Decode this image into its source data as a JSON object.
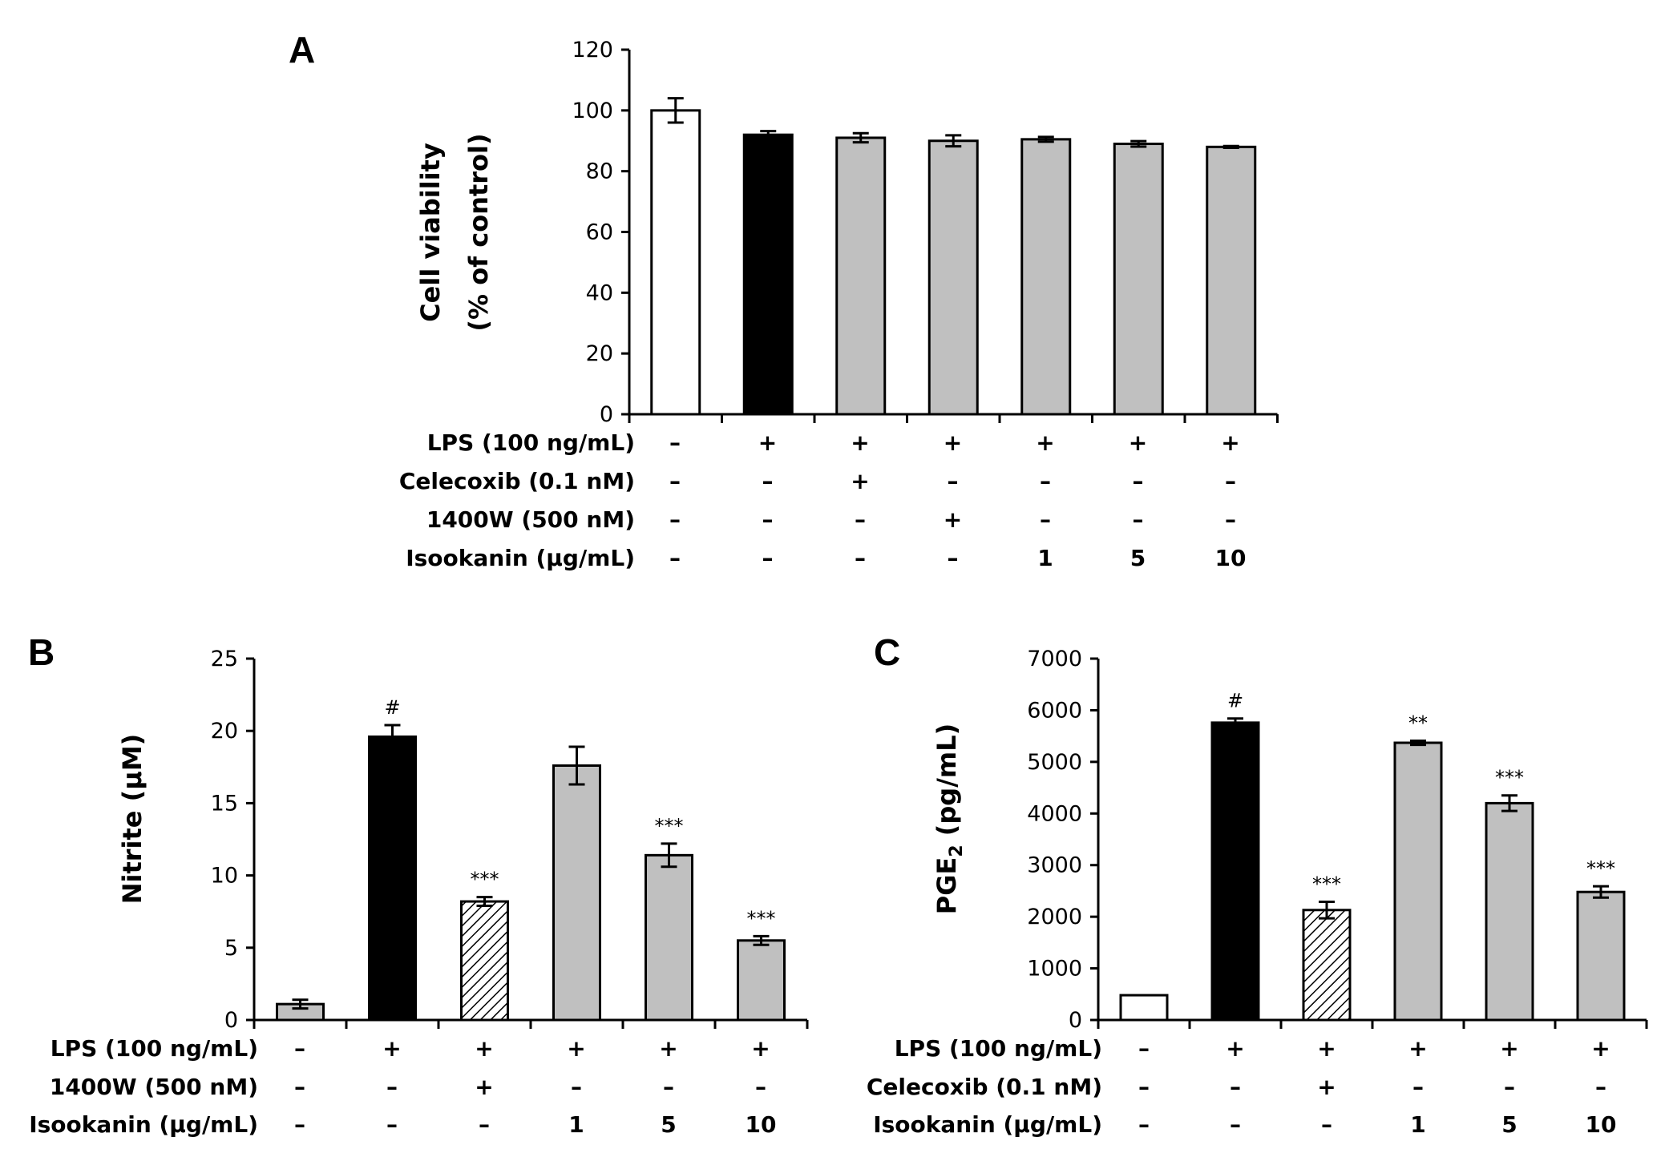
{
  "chart_data": [
    {
      "panel": "A",
      "type": "bar",
      "ylabel": "Cell viability",
      "ylabel2": "(% of control)",
      "ylim": [
        0,
        120
      ],
      "yticks": [
        "0",
        "20",
        "40",
        "60",
        "80",
        "100",
        "120"
      ],
      "values": [
        100,
        92,
        91,
        90,
        90.5,
        89,
        88
      ],
      "errors": [
        4,
        1.2,
        1.5,
        1.8,
        0.8,
        0.9,
        0.3
      ],
      "fills": [
        "#ffffff",
        "#000000",
        "#c0c0c0",
        "#c0c0c0",
        "#c0c0c0",
        "#c0c0c0",
        "#c0c0c0"
      ],
      "significance": [
        "",
        "",
        "",
        "",
        "",
        "",
        ""
      ],
      "rows": [
        {
          "label": "LPS (100 ng/mL)",
          "values": [
            "–",
            "+",
            "+",
            "+",
            "+",
            "+",
            "+"
          ]
        },
        {
          "label": "Celecoxib (0.1 nM)",
          "values": [
            "–",
            "–",
            "+",
            "–",
            "–",
            "–",
            "–"
          ]
        },
        {
          "label": "1400W (500 nM)",
          "values": [
            "–",
            "–",
            "–",
            "+",
            "–",
            "–",
            "–"
          ]
        },
        {
          "label": "Isookanin (μg/mL)",
          "values": [
            "–",
            "–",
            "–",
            "–",
            "1",
            "5",
            "10"
          ]
        }
      ]
    },
    {
      "panel": "B",
      "type": "bar",
      "ylabel": "Nitrite (μM)",
      "ylim": [
        0,
        25
      ],
      "yticks": [
        "0",
        "5",
        "10",
        "15",
        "20",
        "25"
      ],
      "values": [
        1.1,
        19.6,
        8.2,
        17.6,
        11.4,
        5.5
      ],
      "errors": [
        0.3,
        0.8,
        0.3,
        1.3,
        0.8,
        0.3
      ],
      "fills": [
        "#c0c0c0",
        "#000000",
        "hatch",
        "#c0c0c0",
        "#c0c0c0",
        "#c0c0c0"
      ],
      "significance": [
        "",
        "#",
        "***",
        "",
        "***",
        "***"
      ],
      "rows": [
        {
          "label": "LPS (100 ng/mL)",
          "values": [
            "–",
            "+",
            "+",
            "+",
            "+",
            "+"
          ]
        },
        {
          "label": "1400W (500 nM)",
          "values": [
            "–",
            "–",
            "+",
            "–",
            "–",
            "–"
          ]
        },
        {
          "label": "Isookanin (μg/mL)",
          "values": [
            "–",
            "–",
            "–",
            "1",
            "5",
            "10"
          ]
        }
      ]
    },
    {
      "panel": "C",
      "type": "bar",
      "ylabel": "PGE",
      "ylabel_sub": "2",
      "ylabel_unit": " (pg/mL)",
      "ylim": [
        0,
        7000
      ],
      "yticks": [
        "0",
        "1000",
        "2000",
        "3000",
        "4000",
        "5000",
        "6000",
        "7000"
      ],
      "values": [
        480,
        5760,
        2130,
        5370,
        4200,
        2480
      ],
      "errors": [
        0,
        80,
        160,
        40,
        150,
        110
      ],
      "fills": [
        "#ffffff",
        "#000000",
        "hatch",
        "#c0c0c0",
        "#c0c0c0",
        "#c0c0c0"
      ],
      "significance": [
        "",
        "#",
        "***",
        "**",
        "***",
        "***"
      ],
      "rows": [
        {
          "label": "LPS (100 ng/mL)",
          "values": [
            "–",
            "+",
            "+",
            "+",
            "+",
            "+"
          ]
        },
        {
          "label": "Celecoxib (0.1 nM)",
          "values": [
            "–",
            "–",
            "+",
            "–",
            "–",
            "–"
          ]
        },
        {
          "label": "Isookanin (μg/mL)",
          "values": [
            "–",
            "–",
            "–",
            "1",
            "5",
            "10"
          ]
        }
      ]
    }
  ]
}
